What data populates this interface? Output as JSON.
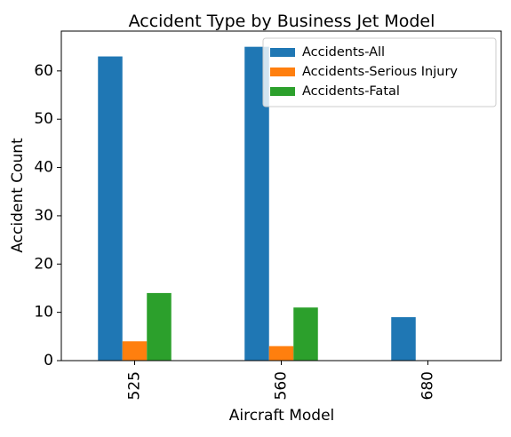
{
  "chart_data": {
    "type": "bar",
    "title": "Accident Type by Business Jet Model",
    "xlabel": "Aircraft Model",
    "ylabel": "Accident Count",
    "categories": [
      "525",
      "560",
      "680"
    ],
    "series": [
      {
        "name": "Accidents-All",
        "values": [
          63,
          65,
          9
        ],
        "color": "#1f77b4"
      },
      {
        "name": "Accidents-Serious Injury",
        "values": [
          4,
          3,
          0
        ],
        "color": "#ff7f0e"
      },
      {
        "name": "Accidents-Fatal",
        "values": [
          14,
          11,
          0
        ],
        "color": "#2ca02c"
      }
    ],
    "ylim": [
      0,
      68.25
    ],
    "yticks": [
      0,
      10,
      20,
      30,
      40,
      50,
      60
    ],
    "grid": false,
    "legend_position": "top-right"
  }
}
